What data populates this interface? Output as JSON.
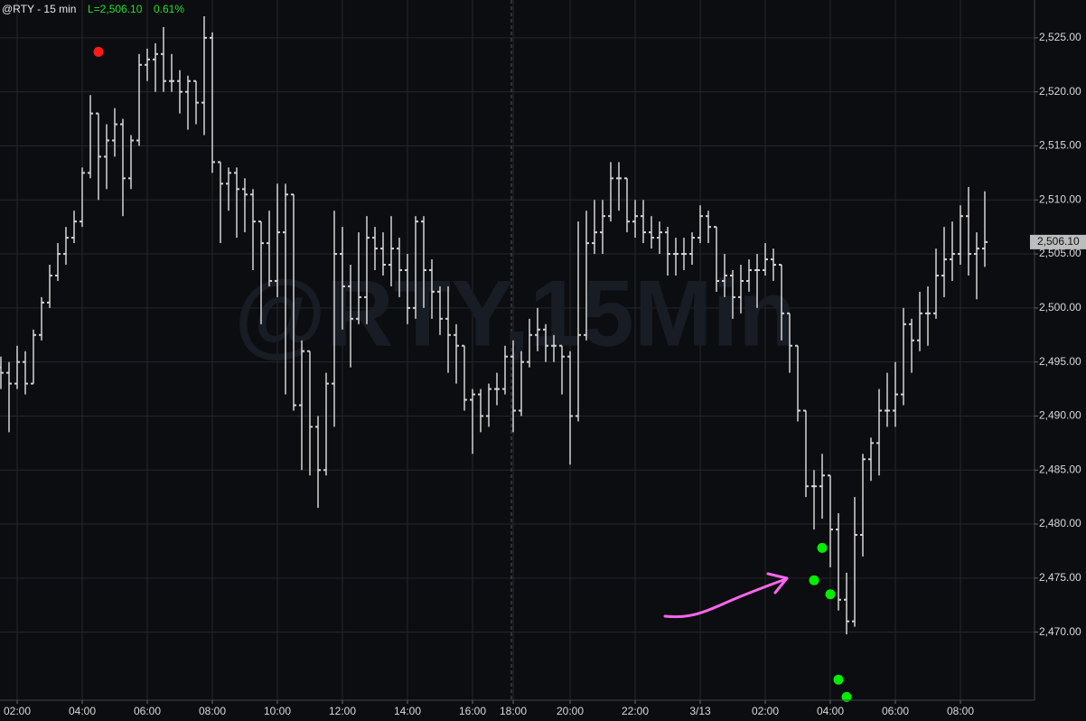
{
  "chart_data": {
    "type": "ohlc",
    "symbol": "@RTY - 15 min",
    "last_text": "L=2,506.10",
    "change_text": "0.61%",
    "watermark": "@RTY,15Min",
    "color": "#d4d4d4",
    "grid": true,
    "categories": [
      null,
      null,
      "02:00",
      null,
      null,
      null,
      null,
      null,
      null,
      null,
      "04:00",
      null,
      null,
      null,
      null,
      null,
      null,
      null,
      "06:00",
      null,
      null,
      null,
      null,
      null,
      null,
      null,
      "08:00",
      null,
      null,
      null,
      null,
      null,
      null,
      null,
      "10:00",
      null,
      null,
      null,
      null,
      null,
      null,
      null,
      "12:00",
      null,
      null,
      null,
      null,
      null,
      null,
      null,
      "14:00",
      null,
      null,
      null,
      null,
      null,
      null,
      null,
      "16:00",
      null,
      null,
      null,
      null,
      "18:00",
      null,
      null,
      null,
      null,
      null,
      null,
      "20:00",
      null,
      null,
      null,
      null,
      null,
      null,
      null,
      "22:00",
      null,
      null,
      null,
      null,
      null,
      null,
      null,
      "3/13",
      null,
      null,
      null,
      null,
      null,
      null,
      null,
      "02:00",
      null,
      null,
      null,
      null,
      null,
      null,
      null,
      "04:00",
      null,
      null,
      null,
      null,
      null,
      null,
      null,
      "06:00",
      null,
      null,
      null,
      null,
      null,
      null,
      null,
      "08:00",
      null,
      null,
      null
    ],
    "open": [
      2494.5,
      2494,
      2493,
      2495,
      2493,
      2497.5,
      2500.5,
      2503,
      2505,
      2506.5,
      2508,
      2512.5,
      2518,
      2514,
      2515.5,
      2517,
      2512,
      2515.5,
      2522.5,
      2523,
      2523.5,
      2521,
      2521,
      2520,
      2521,
      2519,
      2525,
      2513.5,
      2511.5,
      2512.5,
      2511,
      2510.5,
      2508,
      2506,
      2502.5,
      2507,
      2510.5,
      2491,
      2496,
      2489,
      2485,
      2493,
      2505,
      2502,
      2499,
      2501,
      2506.5,
      2505.5,
      2504,
      2505.5,
      2503.5,
      2500,
      2508,
      2503.5,
      2501.5,
      2499,
      2497.5,
      2496.5,
      2491.5,
      2492,
      2490,
      2492.5,
      2492.5,
      2495.5,
      2490.5,
      2495,
      2497.5,
      2498,
      2496.5,
      2496.5,
      2495.5,
      2490,
      2497.5,
      2506,
      2507,
      2508.5,
      2512,
      2512,
      2508,
      2508.5,
      2507,
      2506.5,
      2507,
      2505,
      2505,
      2505,
      2506.5,
      2508.5,
      2507.5,
      2502.5,
      2503,
      2501,
      2502.5,
      2503.5,
      2503.5,
      2504.5,
      2504,
      2499.5,
      2496.5,
      2490.5,
      2483.5,
      2483.5,
      2484.5,
      2479.5,
      2473,
      2471,
      2479,
      2486,
      2487.5,
      2490.5,
      2490.5,
      2492,
      2498.5,
      2497,
      2499.5,
      2499.5,
      2503,
      2504.5,
      2505,
      2508.5,
      2505,
      2505.5
    ],
    "high": [
      2495.5,
      2495,
      2496.5,
      2496,
      2498,
      2501,
      2504,
      2506,
      2507.5,
      2509,
      2513,
      2519.7,
      2518,
      2517,
      2518.5,
      2517.5,
      2516,
      2523.5,
      2524,
      2524.5,
      2526,
      2523.5,
      2522,
      2521.5,
      2521,
      2527,
      2525.5,
      2513.5,
      2513,
      2513,
      2512,
      2511,
      2508,
      2509,
      2511.5,
      2511.5,
      2510.5,
      2497,
      2496,
      2490,
      2494,
      2509,
      2507.5,
      2504,
      2507,
      2508.5,
      2507.5,
      2507,
      2508.5,
      2506.5,
      2505,
      2508.5,
      2508.5,
      2504.5,
      2502,
      2502,
      2498.5,
      2496.5,
      2492.5,
      2492.5,
      2493,
      2494,
      2496.5,
      2497,
      2496,
      2499,
      2500,
      2498.5,
      2497.5,
      2496.5,
      2496,
      2508,
      2509,
      2510,
      2510,
      2513.5,
      2513.5,
      2512,
      2510,
      2510,
      2508.5,
      2508,
      2507.5,
      2506.5,
      2506.5,
      2507,
      2509.5,
      2509,
      2507.5,
      2505,
      2503.5,
      2504,
      2504.5,
      2505,
      2506,
      2505.5,
      2504,
      2499.5,
      2496.5,
      2490.5,
      2485,
      2486.5,
      2484.5,
      2481,
      2475.5,
      2482.5,
      2486.5,
      2488,
      2492.5,
      2494,
      2495,
      2500,
      2499,
      2501.5,
      2502,
      2505.5,
      2507.5,
      2508,
      2509.5,
      2511.2,
      2507,
      2510.8
    ],
    "low": [
      2492.5,
      2488.5,
      2492.5,
      2492,
      2493,
      2497,
      2500,
      2502.5,
      2504,
      2506,
      2507.5,
      2512,
      2510,
      2511,
      2514,
      2508.5,
      2511,
      2515,
      2521,
      2520,
      2520,
      2520,
      2518,
      2516.5,
      2517,
      2516,
      2512.5,
      2506,
      2509,
      2506.5,
      2507,
      2503.5,
      2498.5,
      2502,
      2501,
      2492,
      2490.5,
      2485,
      2484.5,
      2481.5,
      2484.5,
      2489,
      2498,
      2494.5,
      2498.5,
      2498.5,
      2503.5,
      2503,
      2502,
      2501,
      2498.5,
      2499,
      2500,
      2499,
      2497.5,
      2494,
      2493,
      2490.5,
      2486.5,
      2488.5,
      2489,
      2491,
      2492,
      2488.5,
      2490,
      2494.5,
      2496,
      2495,
      2495,
      2492,
      2485.5,
      2489.5,
      2497,
      2505,
      2505,
      2508,
      2509,
      2507,
      2506.5,
      2506,
      2505.5,
      2505,
      2503,
      2503,
      2503.5,
      2504,
      2506,
      2506,
      2501.5,
      2501,
      2499,
      2499.5,
      2501.5,
      2500,
      2503,
      2502.5,
      2497,
      2494,
      2489.5,
      2482.5,
      2479.5,
      2480.5,
      2476,
      2472,
      2469.8,
      2470.5,
      2477,
      2484,
      2484.5,
      2489,
      2489,
      2491,
      2494,
      2496,
      2496.5,
      2499,
      2501,
      2502.5,
      2504,
      2503,
      2500.8,
      2503.8
    ],
    "close": [
      2494,
      2493,
      2495,
      2493,
      2497.5,
      2500.5,
      2503,
      2505,
      2506.5,
      2508,
      2512.5,
      2518,
      2514,
      2515.5,
      2517,
      2512,
      2515.5,
      2522.5,
      2523,
      2523.5,
      2521,
      2521,
      2520,
      2521,
      2519,
      2525,
      2513.5,
      2511.5,
      2512.5,
      2511,
      2510.5,
      2508,
      2506,
      2502.5,
      2507,
      2510.5,
      2491,
      2496,
      2489,
      2485,
      2493,
      2505,
      2502,
      2499,
      2501,
      2506.5,
      2505.5,
      2504,
      2505.5,
      2503.5,
      2500,
      2508,
      2503.5,
      2501.5,
      2499,
      2497.5,
      2496.5,
      2491.5,
      2492,
      2490,
      2492.5,
      2492.5,
      2495.5,
      2490.5,
      2495,
      2497.5,
      2498,
      2496.5,
      2496.5,
      2495.5,
      2490,
      2497.5,
      2506,
      2507,
      2508.5,
      2512,
      2512,
      2508,
      2508.5,
      2507,
      2506.5,
      2507,
      2505,
      2505,
      2505,
      2506.5,
      2508.5,
      2507.5,
      2502.5,
      2503,
      2501,
      2502.5,
      2503.5,
      2503.5,
      2504.5,
      2504,
      2499.5,
      2496.5,
      2490.5,
      2483.5,
      2483.5,
      2484.5,
      2479.5,
      2473,
      2471,
      2479,
      2486,
      2487.5,
      2490.5,
      2490.5,
      2492,
      2498.5,
      2497,
      2499.5,
      2499.5,
      2503,
      2504.5,
      2505,
      2508.5,
      2505,
      2505.5,
      2506.1
    ],
    "signals": [
      {
        "color": "#ff1a1a",
        "points": [
          {
            "x": 12,
            "y": 2523.7
          }
        ]
      },
      {
        "color": "#00ee00",
        "points": [
          {
            "x": 100,
            "y": 2474.8
          },
          {
            "x": 101,
            "y": 2477.8
          },
          {
            "x": 102,
            "y": 2473.5
          },
          {
            "x": 103,
            "y": 2465.6
          },
          {
            "x": 104,
            "y": 2464.0
          }
        ]
      }
    ],
    "last_price": {
      "value": 2506.1,
      "label": "2,506.10"
    },
    "ylim": [
      2463.7,
      2528.5
    ],
    "yticks": [
      {
        "value": 2470,
        "label": "2,470.00"
      },
      {
        "value": 2475,
        "label": "2,475.00"
      },
      {
        "value": 2480,
        "label": "2,480.00"
      },
      {
        "value": 2485,
        "label": "2,485.00"
      },
      {
        "value": 2490,
        "label": "2,490.00"
      },
      {
        "value": 2495,
        "label": "2,495.00"
      },
      {
        "value": 2500,
        "label": "2,500.00"
      },
      {
        "value": 2505,
        "label": "2,505.00"
      },
      {
        "value": 2510,
        "label": "2,510.00"
      },
      {
        "value": 2515,
        "label": "2,515.00"
      },
      {
        "value": 2520,
        "label": "2,520.00"
      },
      {
        "value": 2525,
        "label": "2,525.00"
      }
    ]
  }
}
